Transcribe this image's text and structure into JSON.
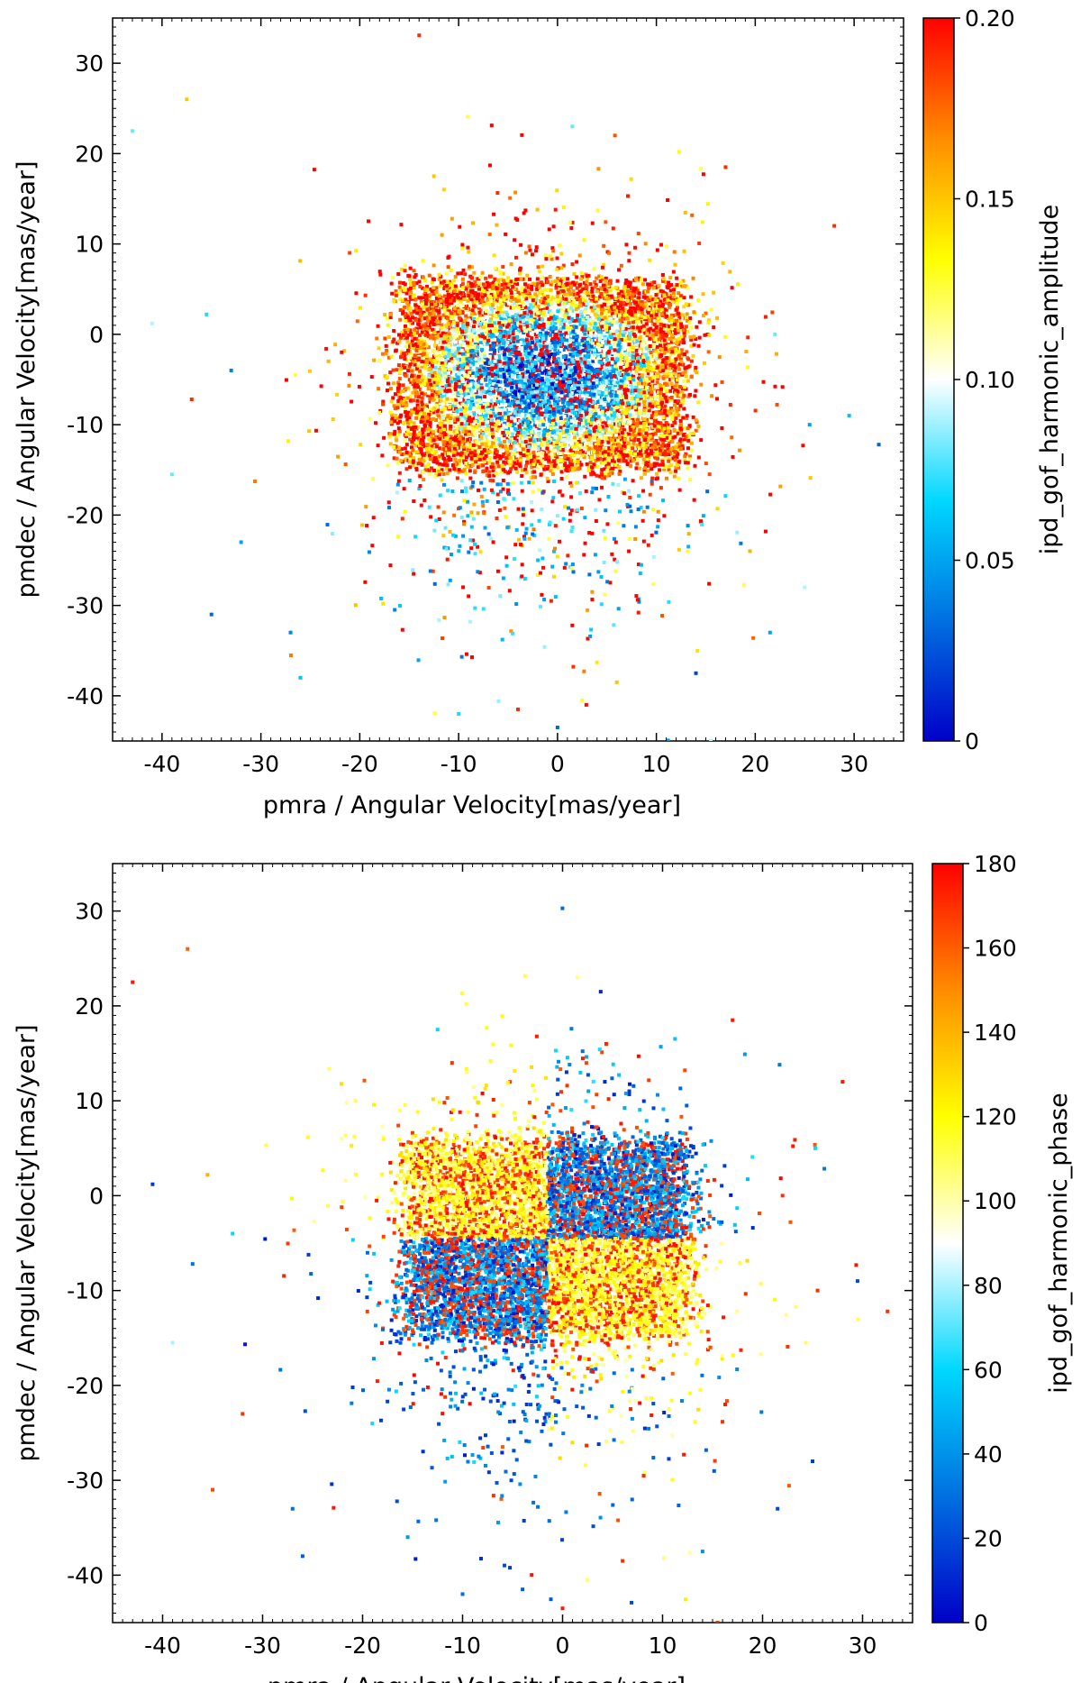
{
  "chart_data": [
    {
      "type": "scatter",
      "title": "",
      "xlabel": "pmra / Angular Velocity[mas/year]",
      "ylabel": "pmdec / Angular Velocity[mas/year]",
      "xlim": [
        -45,
        35
      ],
      "ylim": [
        -45,
        35
      ],
      "xticks": [
        -40,
        -30,
        -20,
        -10,
        0,
        10,
        20,
        30
      ],
      "yticks": [
        -40,
        -30,
        -20,
        -10,
        0,
        10,
        20,
        30
      ],
      "grid": false,
      "colorbar": {
        "label": "ipd_gof_harmonic_amplitude",
        "min": 0,
        "max": 0.2,
        "ticks": [
          0,
          0.05,
          0.1,
          0.15,
          0.2
        ],
        "tick_labels": [
          "0",
          "0.05",
          "0.10",
          "0.15",
          "0.20"
        ],
        "colormap": [
          "#0000c8",
          "#0070e0",
          "#00d8ff",
          "#ffffff",
          "#ffff00",
          "#ff8c00",
          "#ff0000"
        ]
      },
      "point_cloud": {
        "count": 9000,
        "center_pmra": -1.5,
        "center_pmdec": -4.5,
        "core_half_width_pmra": 14,
        "core_half_height_pmdec": 10,
        "color_trend": "high amplitude (red) toward the edges, low amplitude (blue) in the core"
      },
      "outliers": [
        {
          "x": -43,
          "y": 22.5,
          "v": 0.08
        },
        {
          "x": -37.5,
          "y": 26,
          "v": 0.15
        },
        {
          "x": -41,
          "y": 1.2,
          "v": 0.09
        },
        {
          "x": -35.5,
          "y": 2.2,
          "v": 0.07
        },
        {
          "x": -33,
          "y": -4,
          "v": 0.04
        },
        {
          "x": -37,
          "y": -7.2,
          "v": 0.19
        },
        {
          "x": -39,
          "y": -15.5,
          "v": 0.08
        },
        {
          "x": -35,
          "y": -31,
          "v": 0.03
        },
        {
          "x": -32,
          "y": -23,
          "v": 0.05
        },
        {
          "x": -27,
          "y": -33,
          "v": 0.04
        },
        {
          "x": -26,
          "y": -38,
          "v": 0.06
        },
        {
          "x": 1.5,
          "y": 23,
          "v": 0.08
        },
        {
          "x": -12.5,
          "y": 17.5,
          "v": 0.15
        },
        {
          "x": 17,
          "y": 18.5,
          "v": 0.19
        },
        {
          "x": 28,
          "y": 12,
          "v": 0.19
        },
        {
          "x": 29.5,
          "y": -9,
          "v": 0.06
        },
        {
          "x": 32.5,
          "y": -12.2,
          "v": 0.03
        },
        {
          "x": 25.5,
          "y": -10,
          "v": 0.05
        },
        {
          "x": 25,
          "y": -28,
          "v": 0.09
        },
        {
          "x": 21.5,
          "y": -33,
          "v": 0.05
        },
        {
          "x": 14,
          "y": -37.5,
          "v": 0.02
        },
        {
          "x": -4,
          "y": -41.5,
          "v": 0.19
        },
        {
          "x": 0,
          "y": -43.5,
          "v": 0.03
        },
        {
          "x": 2.5,
          "y": -40.5,
          "v": 0.13
        },
        {
          "x": -10,
          "y": -42,
          "v": 0.07
        },
        {
          "x": 6,
          "y": -38.5,
          "v": 0.15
        },
        {
          "x": 15.5,
          "y": -45,
          "v": 0.09
        },
        {
          "x": 22,
          "y": 0,
          "v": 0.08
        }
      ]
    },
    {
      "type": "scatter",
      "title": "",
      "xlabel": "pmra / Angular Velocity[mas/year]",
      "ylabel": "pmdec / Angular Velocity[mas/year]",
      "xlim": [
        -45,
        35
      ],
      "ylim": [
        -45,
        35
      ],
      "xticks": [
        -40,
        -30,
        -20,
        -10,
        0,
        10,
        20,
        30
      ],
      "yticks": [
        -40,
        -30,
        -20,
        -10,
        0,
        10,
        20,
        30
      ],
      "grid": false,
      "colorbar": {
        "label": "ipd_gof_harmonic_phase",
        "min": 0,
        "max": 180,
        "ticks": [
          0,
          20,
          40,
          60,
          80,
          100,
          120,
          140,
          160,
          180
        ],
        "tick_labels": [
          "0",
          "20",
          "40",
          "60",
          "80",
          "100",
          "120",
          "140",
          "160",
          "180"
        ],
        "colormap": [
          "#0000c8",
          "#0070e0",
          "#00d8ff",
          "#ffffff",
          "#ffff00",
          "#ff8c00",
          "#ff0000"
        ]
      },
      "point_cloud": {
        "count": 9000,
        "center_pmra": -1.5,
        "center_pmdec": -4.5,
        "core_half_width_pmra": 14,
        "core_half_height_pmdec": 10,
        "color_trend": "yellow (about 110) upper-left and lower-right, blue (about 20) lower-left and upper-right, red (about 170) mixed throughout"
      },
      "outliers": [
        {
          "x": -43,
          "y": 22.5,
          "v": 175
        },
        {
          "x": -37.5,
          "y": 26,
          "v": 160
        },
        {
          "x": -41,
          "y": 1.2,
          "v": 15
        },
        {
          "x": -35.5,
          "y": 2.2,
          "v": 140
        },
        {
          "x": -33,
          "y": -4,
          "v": 60
        },
        {
          "x": -37,
          "y": -7.2,
          "v": 30
        },
        {
          "x": -39,
          "y": -15.5,
          "v": 80
        },
        {
          "x": -35,
          "y": -31,
          "v": 165
        },
        {
          "x": -32,
          "y": -23,
          "v": 170
        },
        {
          "x": -27,
          "y": -33,
          "v": 30
        },
        {
          "x": -26,
          "y": -38,
          "v": 25
        },
        {
          "x": 1.5,
          "y": 23,
          "v": 105
        },
        {
          "x": -12.5,
          "y": 17.5,
          "v": 60
        },
        {
          "x": 17,
          "y": 18.5,
          "v": 175
        },
        {
          "x": 28,
          "y": 12,
          "v": 175
        },
        {
          "x": 29.5,
          "y": -9,
          "v": 20
        },
        {
          "x": 32.5,
          "y": -12.2,
          "v": 170
        },
        {
          "x": 25.5,
          "y": -10,
          "v": 170
        },
        {
          "x": 25,
          "y": -28,
          "v": 15
        },
        {
          "x": 21.5,
          "y": -33,
          "v": 20
        },
        {
          "x": 14,
          "y": -37.5,
          "v": 40
        },
        {
          "x": -4,
          "y": -41.5,
          "v": 25
        },
        {
          "x": 0,
          "y": -43.5,
          "v": 175
        },
        {
          "x": 2.5,
          "y": -40.5,
          "v": 110
        },
        {
          "x": -10,
          "y": -42,
          "v": 30
        },
        {
          "x": 6,
          "y": -38.5,
          "v": 170
        },
        {
          "x": 15.5,
          "y": -45,
          "v": 170
        },
        {
          "x": 22,
          "y": 0,
          "v": 170
        }
      ]
    }
  ]
}
